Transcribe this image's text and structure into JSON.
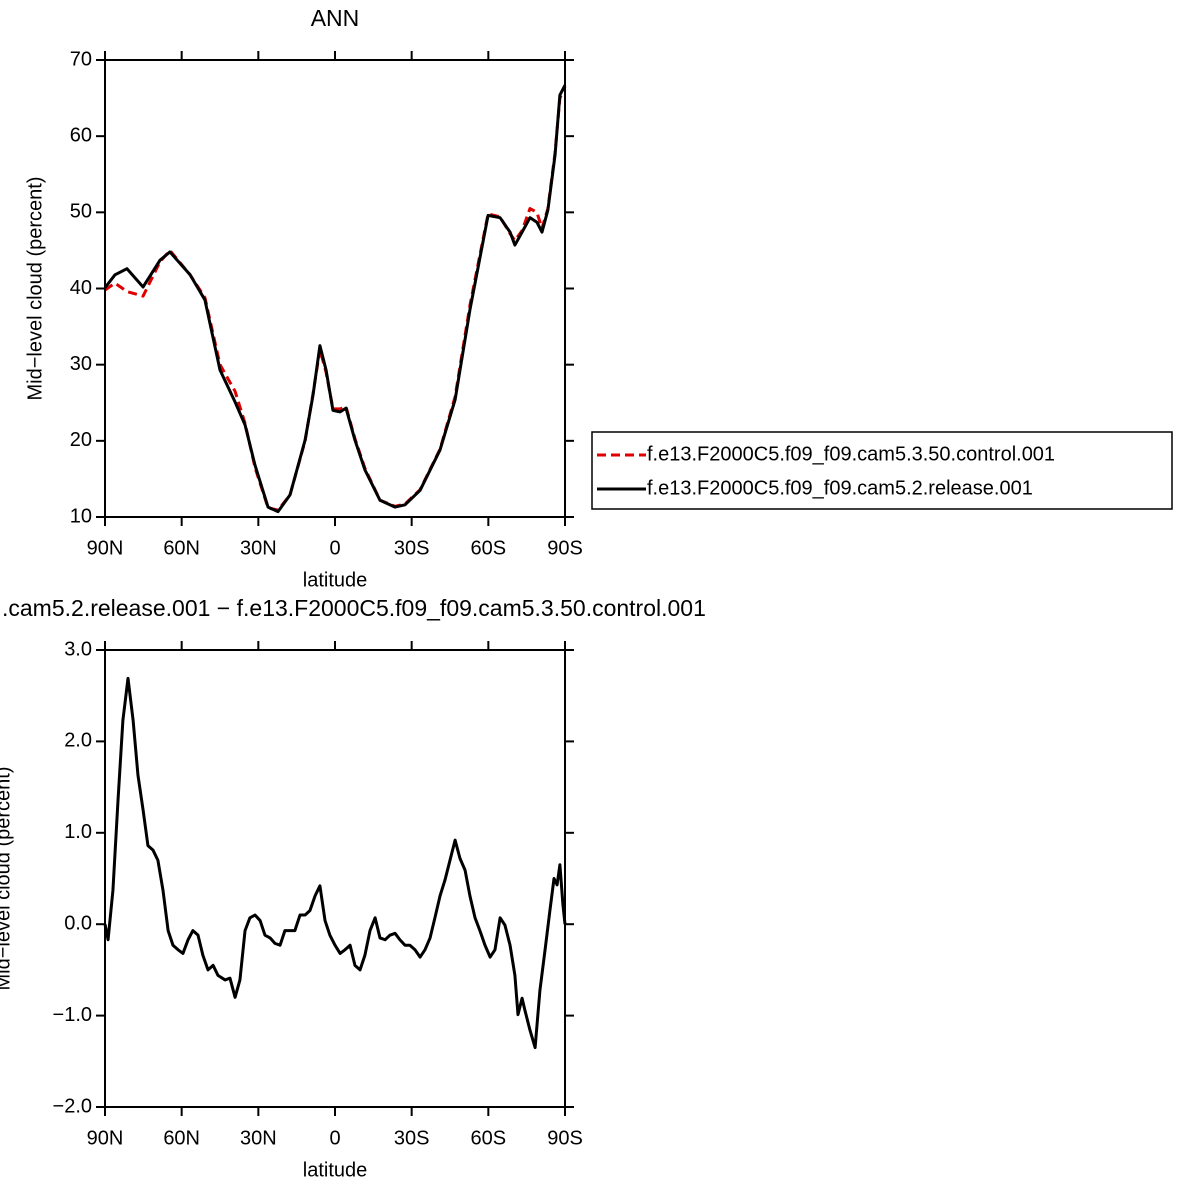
{
  "chart_data": [
    {
      "type": "line",
      "title": "ANN",
      "xlabel": "latitude",
      "ylabel": "Mid−level cloud (percent)",
      "x": [
        90,
        86.1,
        81.4,
        75.1,
        68.5,
        64.6,
        56.7,
        50.9,
        45,
        39.1,
        35.2,
        31.3,
        26.2,
        22.3,
        17.6,
        11.7,
        8.6,
        5.9,
        3.5,
        0.8,
        -2,
        -4.3,
        -7.8,
        -11.7,
        -17.6,
        -23.5,
        -27.4,
        -33.3,
        -41.1,
        -47,
        -52.8,
        -59.9,
        -64.6,
        -68.5,
        -70.4,
        -73.2,
        -76.3,
        -79,
        -81,
        -83.3,
        -86.1,
        -88,
        -90
      ],
      "series": [
        {
          "name": "f.e13.F2000C5.f09_f09.cam5.3.50.control.001",
          "color": "#e00000",
          "dash": true,
          "values": [
            39.8,
            40.7,
            39.6,
            39.0,
            43.5,
            45.0,
            41.8,
            38.8,
            30.0,
            26.5,
            22.3,
            16.5,
            11.2,
            10.9,
            12.9,
            20.0,
            26.2,
            32.0,
            29.0,
            24.2,
            24.2,
            24.5,
            20.3,
            16.4,
            12.2,
            11.4,
            11.7,
            13.6,
            18.9,
            25.8,
            37.8,
            49.8,
            49.4,
            47.2,
            46.3,
            47.6,
            50.5,
            50.0,
            47.9,
            50.5,
            57.8,
            65.0,
            66.5
          ]
        },
        {
          "name": "f.e13.F2000C5.f09_f09.cam5.2.release.001",
          "color": "#000000",
          "dash": false,
          "values": [
            40.1,
            41.8,
            42.6,
            40.2,
            43.7,
            44.8,
            41.8,
            38.5,
            29.3,
            25.1,
            22.1,
            16.8,
            11.3,
            10.7,
            12.9,
            20.1,
            26.0,
            32.5,
            29.3,
            24.0,
            23.8,
            24.3,
            20.1,
            16.2,
            12.2,
            11.3,
            11.6,
            13.5,
            18.8,
            25.4,
            37.2,
            49.6,
            49.3,
            47.4,
            45.7,
            47.4,
            49.3,
            48.7,
            47.4,
            50.3,
            57.5,
            65.4,
            66.7
          ]
        }
      ],
      "xlim": [
        90,
        -90
      ],
      "xticks": [
        {
          "value": 90,
          "label": "90N"
        },
        {
          "value": 60,
          "label": "60N"
        },
        {
          "value": 30,
          "label": "30N"
        },
        0,
        {
          "value": -30,
          "label": "30S"
        },
        {
          "value": -60,
          "label": "60S"
        },
        {
          "value": -90,
          "label": "90S"
        }
      ],
      "ylim": [
        10,
        70
      ],
      "yticks": [
        10,
        20,
        30,
        40,
        50,
        60,
        70
      ],
      "legend": "right"
    },
    {
      "type": "line",
      "title": ".cam5.2.release.001 − f.e13.F2000C5.f09_f09.cam5.3.50.control.001",
      "xlabel": "latitude",
      "ylabel": "Mid−level cloud (percent)",
      "x": [
        90,
        88.8,
        86.9,
        84.9,
        83,
        81,
        79,
        77.1,
        75.1,
        73.2,
        71.2,
        69.3,
        67.3,
        65.3,
        63.4,
        61.4,
        59.5,
        57.5,
        55.6,
        53.6,
        51.7,
        49.7,
        47.7,
        45.8,
        43,
        41.1,
        39.1,
        37.2,
        35.2,
        33.3,
        31.3,
        29.3,
        27.4,
        25.4,
        23.5,
        21.5,
        19.6,
        17.6,
        15.7,
        13.7,
        11.7,
        9.8,
        7.8,
        5.9,
        3.9,
        2,
        0,
        -2,
        -3.9,
        -5.9,
        -7.8,
        -9.8,
        -11.7,
        -13.7,
        -15.7,
        -17.6,
        -19.6,
        -21.5,
        -23.5,
        -25.4,
        -27.4,
        -29.3,
        -31.3,
        -33.3,
        -35.2,
        -37.2,
        -39.1,
        -41.1,
        -43,
        -45,
        -47,
        -48.9,
        -50.9,
        -52.8,
        -54.8,
        -56.7,
        -58.7,
        -60.7,
        -62.6,
        -64.6,
        -66.5,
        -68.5,
        -70.4,
        -71.6,
        -73.2,
        -74.3,
        -76.3,
        -78.3,
        -80.2,
        -82.2,
        -84.1,
        -85.7,
        -86.9,
        -88,
        -89.2,
        -90
      ],
      "values": [
        0,
        -0.17,
        0.37,
        1.36,
        2.23,
        2.69,
        2.23,
        1.63,
        1.25,
        0.86,
        0.81,
        0.7,
        0.37,
        -0.07,
        -0.23,
        -0.28,
        -0.32,
        -0.17,
        -0.07,
        -0.12,
        -0.34,
        -0.5,
        -0.45,
        -0.56,
        -0.61,
        -0.59,
        -0.8,
        -0.61,
        -0.07,
        0.07,
        0.1,
        0.04,
        -0.12,
        -0.15,
        -0.21,
        -0.23,
        -0.07,
        -0.07,
        -0.07,
        0.1,
        0.1,
        0.15,
        0.31,
        0.42,
        0.04,
        -0.12,
        -0.23,
        -0.32,
        -0.28,
        -0.23,
        -0.45,
        -0.5,
        -0.34,
        -0.07,
        0.07,
        -0.15,
        -0.17,
        -0.12,
        -0.1,
        -0.17,
        -0.23,
        -0.23,
        -0.28,
        -0.36,
        -0.28,
        -0.15,
        0.07,
        0.31,
        0.48,
        0.7,
        0.92,
        0.72,
        0.59,
        0.31,
        0.07,
        -0.07,
        -0.23,
        -0.36,
        -0.28,
        0.07,
        -0.01,
        -0.23,
        -0.56,
        -0.99,
        -0.81,
        -0.94,
        -1.16,
        -1.35,
        -0.72,
        -0.28,
        0.15,
        0.5,
        0.43,
        0.65,
        0.21,
        0
      ],
      "color": "#000000",
      "xlim": [
        90,
        -90
      ],
      "xticks": [
        {
          "value": 90,
          "label": "90N"
        },
        {
          "value": 60,
          "label": "60N"
        },
        {
          "value": 30,
          "label": "30N"
        },
        0,
        {
          "value": -30,
          "label": "30S"
        },
        {
          "value": -60,
          "label": "60S"
        },
        {
          "value": -90,
          "label": "90S"
        }
      ],
      "ylim": [
        -2,
        3
      ],
      "yticks": [
        {
          "value": -2,
          "label": "−2.0"
        },
        {
          "value": -1,
          "label": "−1.0"
        },
        {
          "value": 0,
          "label": "0.0"
        },
        {
          "value": 1,
          "label": "1.0"
        },
        {
          "value": 2,
          "label": "2.0"
        },
        {
          "value": 3,
          "label": "3.0"
        }
      ]
    }
  ]
}
